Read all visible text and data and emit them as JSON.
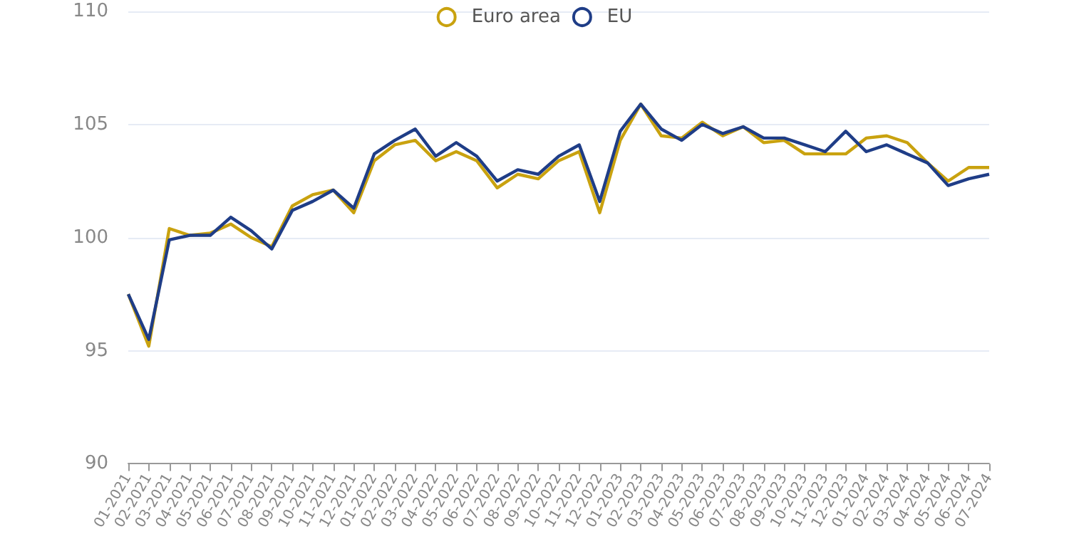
{
  "chart_data": {
    "type": "line",
    "categories": [
      "01-2021",
      "02-2021",
      "03-2021",
      "04-2021",
      "05-2021",
      "06-2021",
      "07-2021",
      "08-2021",
      "09-2021",
      "10-2021",
      "11-2021",
      "12-2021",
      "01-2022",
      "02-2022",
      "03-2022",
      "04-2022",
      "05-2022",
      "06-2022",
      "07-2022",
      "08-2022",
      "09-2022",
      "10-2022",
      "11-2022",
      "12-2022",
      "01-2023",
      "02-2023",
      "03-2023",
      "04-2023",
      "05-2023",
      "06-2023",
      "07-2023",
      "08-2023",
      "09-2023",
      "10-2023",
      "11-2023",
      "12-2023",
      "01-2024",
      "02-2024",
      "03-2024",
      "04-2024",
      "05-2024",
      "06-2024",
      "07-2024"
    ],
    "series": [
      {
        "name": "Euro area",
        "color": "#c9a20f",
        "values": [
          97.5,
          95.2,
          100.4,
          100.1,
          100.2,
          100.6,
          100.0,
          99.6,
          101.4,
          101.9,
          102.1,
          101.1,
          103.4,
          104.1,
          104.3,
          103.4,
          103.8,
          103.4,
          102.2,
          102.8,
          102.6,
          103.4,
          103.8,
          101.1,
          104.3,
          105.9,
          104.5,
          104.4,
          105.1,
          104.5,
          104.9,
          104.2,
          104.3,
          103.7,
          103.7,
          103.7,
          104.4,
          104.5,
          104.2,
          103.3,
          102.5,
          103.1,
          103.1
        ]
      },
      {
        "name": "EU",
        "color": "#1f3d87",
        "values": [
          97.5,
          95.5,
          99.9,
          100.1,
          100.1,
          100.9,
          100.3,
          99.5,
          101.2,
          101.6,
          102.1,
          101.3,
          103.7,
          104.3,
          104.8,
          103.6,
          104.2,
          103.6,
          102.5,
          103.0,
          102.8,
          103.6,
          104.1,
          101.6,
          104.7,
          105.9,
          104.8,
          104.3,
          105.0,
          104.6,
          104.9,
          104.4,
          104.4,
          104.1,
          103.8,
          104.7,
          103.8,
          104.1,
          103.7,
          103.3,
          102.3,
          102.6,
          102.8
        ]
      }
    ],
    "ylim": [
      90,
      110
    ],
    "yticks": [
      90,
      95,
      100,
      105,
      110
    ],
    "grid": "y",
    "legend": "top",
    "marker": "none",
    "line_style": "solid"
  }
}
